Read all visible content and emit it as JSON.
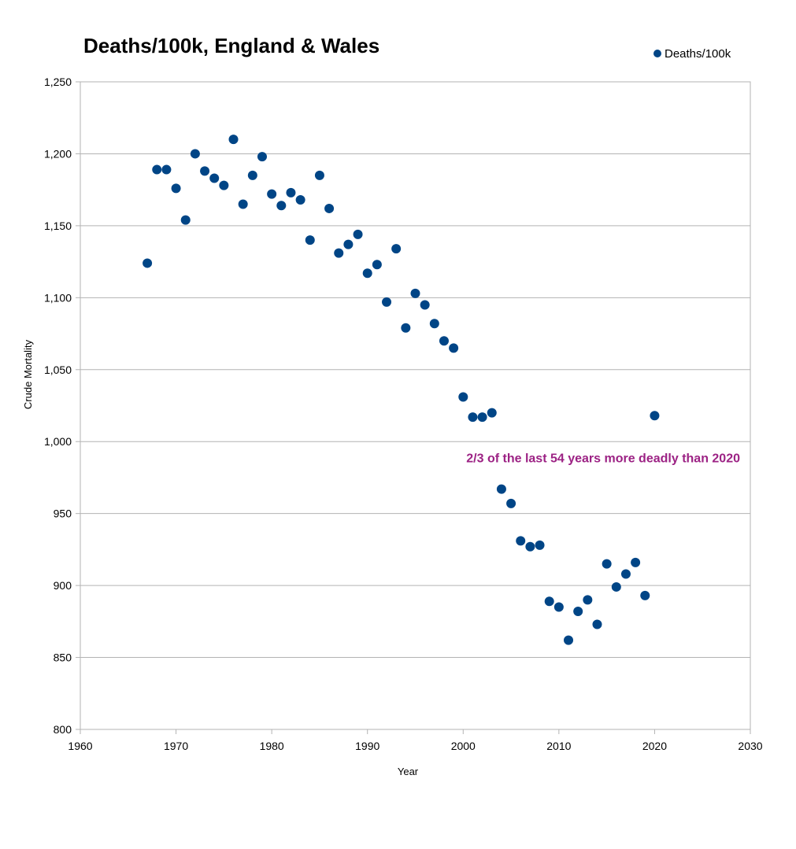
{
  "chart_data": {
    "type": "scatter",
    "title": "Deaths/100k, England & Wales",
    "xlabel": "Year",
    "ylabel": "Crude Mortality",
    "xlim": [
      1960,
      2030
    ],
    "ylim": [
      800,
      1250
    ],
    "x_ticks": [
      1960,
      1970,
      1980,
      1990,
      2000,
      2010,
      2020,
      2030
    ],
    "y_ticks": [
      800,
      850,
      900,
      950,
      1000,
      1050,
      1100,
      1150,
      1200,
      1250
    ],
    "x_tick_labels": [
      "1960",
      "1970",
      "1980",
      "1990",
      "2000",
      "2010",
      "2020",
      "2030"
    ],
    "y_tick_labels": [
      "800",
      "850",
      "900",
      "950",
      "1,000",
      "1,050",
      "1,100",
      "1,150",
      "1,200",
      "1,250"
    ],
    "grid": "horizontal",
    "legend_position": "top-right",
    "series": [
      {
        "name": "Deaths/100k",
        "color": "#004586",
        "x": [
          1967,
          1968,
          1969,
          1970,
          1971,
          1972,
          1973,
          1974,
          1975,
          1976,
          1977,
          1978,
          1979,
          1980,
          1981,
          1982,
          1983,
          1984,
          1985,
          1986,
          1987,
          1988,
          1989,
          1990,
          1991,
          1992,
          1993,
          1994,
          1995,
          1996,
          1997,
          1998,
          1999,
          2000,
          2001,
          2002,
          2003,
          2004,
          2005,
          2006,
          2007,
          2008,
          2009,
          2010,
          2011,
          2012,
          2013,
          2014,
          2015,
          2016,
          2017,
          2018,
          2019,
          2020
        ],
        "y": [
          1124,
          1189,
          1189,
          1176,
          1154,
          1200,
          1188,
          1183,
          1178,
          1210,
          1165,
          1185,
          1198,
          1172,
          1164,
          1173,
          1168,
          1140,
          1185,
          1162,
          1131,
          1137,
          1144,
          1117,
          1123,
          1097,
          1134,
          1079,
          1103,
          1095,
          1082,
          1070,
          1065,
          1031,
          1017,
          1017,
          1020,
          967,
          957,
          931,
          927,
          928,
          889,
          885,
          862,
          882,
          890,
          873,
          915,
          899,
          908,
          916,
          893,
          1018
        ]
      }
    ],
    "annotations": [
      {
        "text": "2/3 of the last 54 years more deadly than 2020",
        "color": "#9C2284",
        "anchor_x": 2020,
        "anchor_y": 989
      }
    ]
  }
}
